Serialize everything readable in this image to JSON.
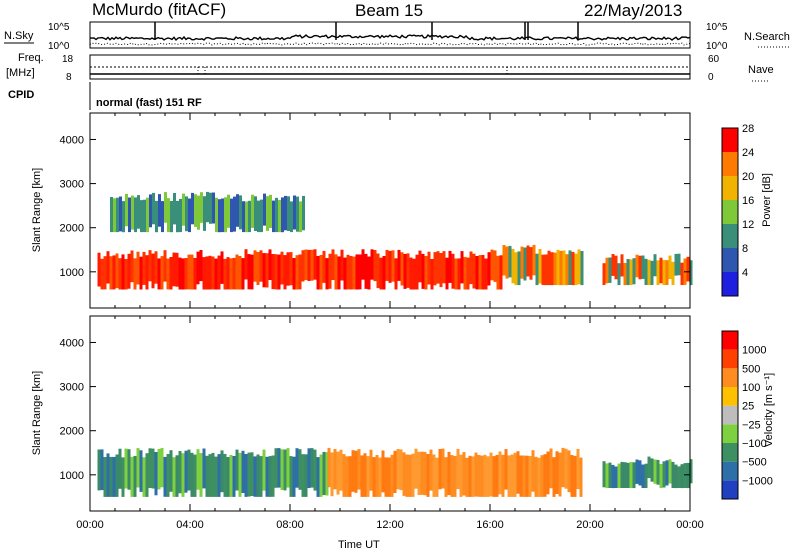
{
  "header": {
    "title_left": "McMurdo (fitACF)",
    "title_center": "Beam 15",
    "title_right": "22/May/2013"
  },
  "top_panels": {
    "nsky_label": "N.Sky",
    "nsky_left_ticks": [
      "10^5",
      "10^0"
    ],
    "nsky_right_ticks": [
      "10^5",
      "10^0"
    ],
    "nsearch_label": "N.Search",
    "freq_label": "Freq.",
    "freq_unit": "[MHz]",
    "freq_ticks": [
      "18",
      "8"
    ],
    "nave_label": "Nave",
    "nave_ticks": [
      "60",
      "0"
    ],
    "cpid_label": "CPID",
    "cpid_text": "normal (fast) 151 RF"
  },
  "chart_data": [
    {
      "type": "heatmap",
      "name": "power-panel",
      "ylabel": "Slant Range [km]",
      "xlabel": "",
      "xlim": [
        "00:00",
        "24:00"
      ],
      "ylim": [
        180,
        4600
      ],
      "y_ticks": [
        1000,
        2000,
        3000,
        4000
      ],
      "colorbar_label": "Power [dB]",
      "colorbar_ticks": [
        4,
        8,
        12,
        16,
        20,
        24,
        28
      ],
      "colorbar_colors": [
        "#1f1fe0",
        "#2f57b0",
        "#3a8f7a",
        "#7ec83a",
        "#f0b400",
        "#ff7a00",
        "#ff0000"
      ],
      "bands": [
        {
          "range_km": [
            600,
            1400
          ],
          "level": "high",
          "hours": [
            0.3,
            16.5
          ]
        },
        {
          "range_km": [
            700,
            1500
          ],
          "level": "medium",
          "hours": [
            16.5,
            19.7
          ]
        },
        {
          "range_km": [
            700,
            1300
          ],
          "level": "medium",
          "hours": [
            20.5,
            24
          ]
        },
        {
          "range_km": [
            1900,
            2700
          ],
          "level": "low",
          "hours": [
            0.8,
            8.5
          ]
        }
      ]
    },
    {
      "type": "heatmap",
      "name": "velocity-panel",
      "ylabel": "Slant Range [km]",
      "xlabel": "Time UT",
      "xlim": [
        "00:00",
        "24:00"
      ],
      "ylim": [
        180,
        4600
      ],
      "y_ticks": [
        1000,
        2000,
        3000,
        4000
      ],
      "x_ticks": [
        "00:00",
        "04:00",
        "08:00",
        "12:00",
        "16:00",
        "20:00",
        "00:00"
      ],
      "colorbar_label": "Velocity [m s⁻¹]",
      "colorbar_ticks": [
        "1000",
        "500",
        "100",
        "25",
        "−25",
        "−100",
        "−500",
        "−1000"
      ],
      "colorbar_colors": [
        "#2040c0",
        "#2f6fa8",
        "#3e8f62",
        "#7ed040",
        "#bdbdbd",
        "#ffc000",
        "#ff8c20",
        "#ff4000",
        "#ff0000"
      ],
      "bands": [
        {
          "range_km": [
            500,
            1500
          ],
          "sign": "negative-toward (green)",
          "hours": [
            0.3,
            9.5
          ]
        },
        {
          "range_km": [
            500,
            1500
          ],
          "sign": "positive-away (orange)",
          "hours": [
            9.5,
            19.7
          ]
        },
        {
          "range_km": [
            700,
            1300
          ],
          "sign": "mixed",
          "hours": [
            20.5,
            24
          ]
        }
      ]
    }
  ]
}
